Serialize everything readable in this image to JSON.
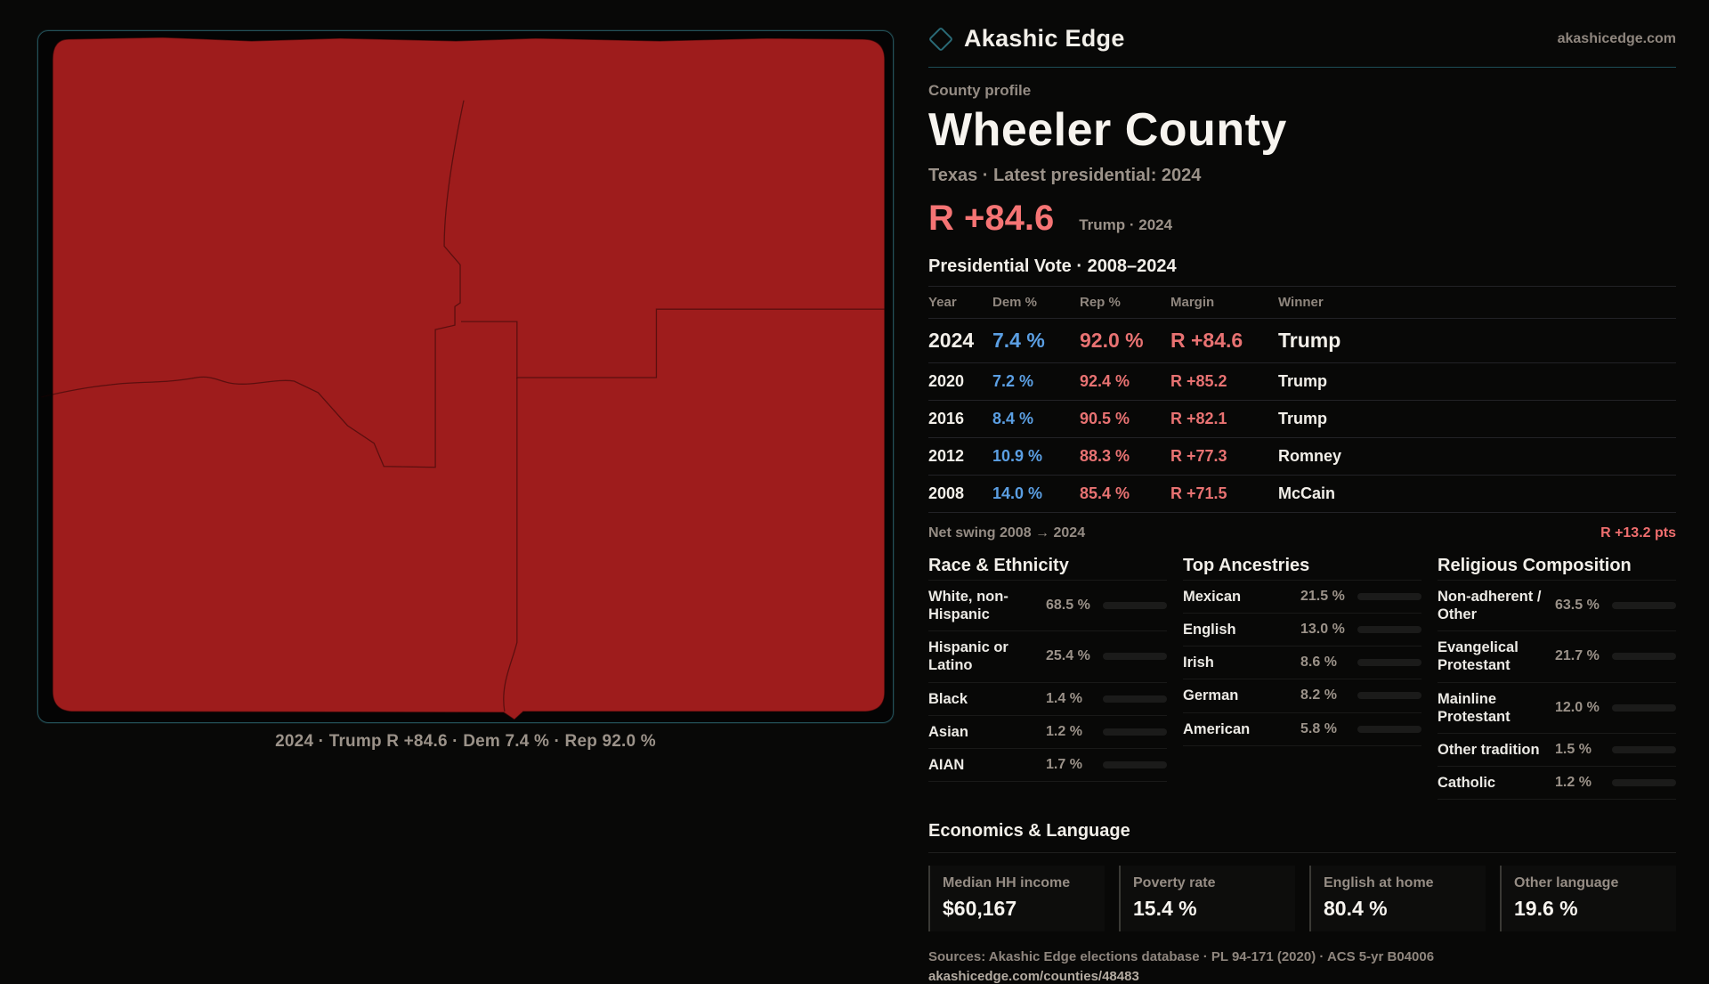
{
  "brand": {
    "name": "Akashic Edge",
    "domain": "akashicedge.com",
    "accent_teal": "#2a6a76"
  },
  "profile": {
    "eyebrow": "County profile",
    "title": "Wheeler County",
    "subtitle": "Texas · Latest presidential: 2024",
    "headline_margin": "R +84.6",
    "headline_note": "Trump · 2024"
  },
  "vote_table": {
    "title": "Presidential Vote · 2008–2024",
    "columns": [
      "Year",
      "Dem %",
      "Rep %",
      "Margin",
      "Winner"
    ],
    "rows": [
      {
        "year": "2024",
        "dem": "7.4 %",
        "rep": "92.0 %",
        "margin": "R +84.6",
        "winner": "Trump"
      },
      {
        "year": "2020",
        "dem": "7.2 %",
        "rep": "92.4 %",
        "margin": "R +85.2",
        "winner": "Trump"
      },
      {
        "year": "2016",
        "dem": "8.4 %",
        "rep": "90.5 %",
        "margin": "R +82.1",
        "winner": "Trump"
      },
      {
        "year": "2012",
        "dem": "10.9 %",
        "rep": "88.3 %",
        "margin": "R +77.3",
        "winner": "Romney"
      },
      {
        "year": "2008",
        "dem": "14.0 %",
        "rep": "85.4 %",
        "margin": "R +71.5",
        "winner": "McCain"
      }
    ],
    "dem_color": "#5b9fe3",
    "rep_color": "#e87272"
  },
  "net_swing": {
    "label": "Net swing 2008 → 2024",
    "value": "R +13.2 pts"
  },
  "demographics": {
    "race": {
      "title": "Race & Ethnicity",
      "rows": [
        {
          "label": "White, non-Hispanic",
          "value": "68.5 %",
          "pct": 68.5,
          "color": "#a9bdd6"
        },
        {
          "label": "Hispanic or Latino",
          "value": "25.4 %",
          "pct": 25.4,
          "color": "#dfa32b"
        },
        {
          "label": "Black",
          "value": "1.4 %",
          "pct": 1.4,
          "color": "#8b7ae0"
        },
        {
          "label": "Asian",
          "value": "1.2 %",
          "pct": 1.2,
          "color": "#2fc98e"
        },
        {
          "label": "AIAN",
          "value": "1.7 %",
          "pct": 1.7,
          "color": "#d97e2a"
        }
      ]
    },
    "ancestries": {
      "title": "Top Ancestries",
      "rows": [
        {
          "label": "Mexican",
          "value": "21.5 %",
          "pct": 21.5,
          "color": "#dfa32b"
        },
        {
          "label": "English",
          "value": "13.0 %",
          "pct": 13.0,
          "color": "#a9bdd6"
        },
        {
          "label": "Irish",
          "value": "8.6 %",
          "pct": 8.6,
          "color": "#a9bdd6"
        },
        {
          "label": "German",
          "value": "8.2 %",
          "pct": 8.2,
          "color": "#a9bdd6"
        },
        {
          "label": "American",
          "value": "5.8 %",
          "pct": 5.8,
          "color": "#a9bdd6"
        }
      ]
    },
    "religion": {
      "title": "Religious Composition",
      "rows": [
        {
          "label": "Non-adherent / Other",
          "value": "63.5 %",
          "pct": 63.5,
          "color": "#7d8799"
        },
        {
          "label": "Evangelical Protestant",
          "value": "21.7 %",
          "pct": 21.7,
          "color": "#e06464"
        },
        {
          "label": "Mainline Protestant",
          "value": "12.0 %",
          "pct": 12.0,
          "color": "#4f96e8"
        },
        {
          "label": "Other tradition",
          "value": "1.5 %",
          "pct": 1.5,
          "color": "#d8d5d0"
        },
        {
          "label": "Catholic",
          "value": "1.2 %",
          "pct": 1.2,
          "color": "#dfa32b"
        }
      ]
    }
  },
  "economics": {
    "title": "Economics & Language",
    "stats": [
      {
        "label": "Median HH income",
        "value": "$60,167"
      },
      {
        "label": "Poverty rate",
        "value": "15.4 %"
      },
      {
        "label": "English at home",
        "value": "80.4 %"
      },
      {
        "label": "Other language",
        "value": "19.6 %"
      }
    ]
  },
  "footer": {
    "sources": "Sources: Akashic Edge elections database · PL 94-171 (2020) · ACS 5-yr B04006",
    "permalink": "akashicedge.com/counties/48483"
  },
  "map": {
    "caption": "2024 · Trump R +84.6 · Dem 7.4 % · Rep 92.0 %",
    "fill_color": "#9e1c1c",
    "border_color": "#235058"
  }
}
